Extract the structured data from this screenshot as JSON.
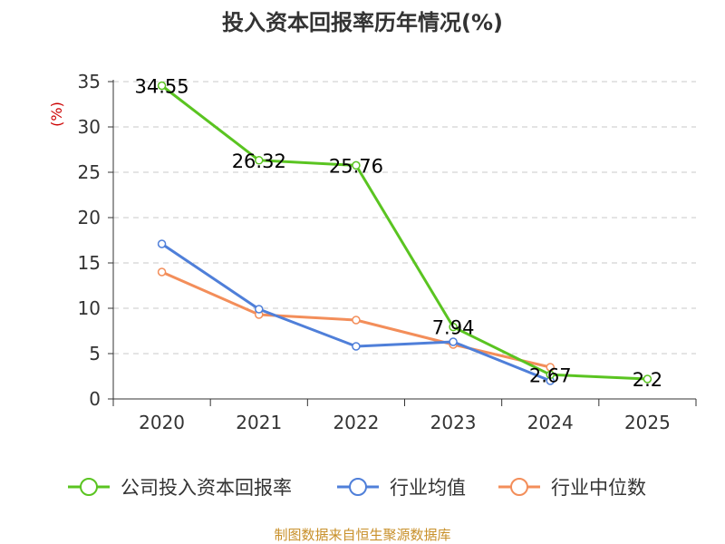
{
  "chart_data": {
    "type": "line",
    "title": "投入资本回报率历年情况(%)",
    "ylabel": "(%)",
    "xlabel": "",
    "categories": [
      "2020",
      "2021",
      "2022",
      "2023",
      "2024",
      "2025"
    ],
    "ylim": [
      0,
      35
    ],
    "yticks": [
      0,
      5,
      10,
      15,
      20,
      25,
      30,
      35
    ],
    "grid": true,
    "legend_position": "bottom",
    "series": [
      {
        "name": "公司投入资本回报率",
        "color": "#5ac421",
        "values": [
          34.55,
          26.32,
          25.76,
          7.94,
          2.67,
          2.2
        ],
        "labels": [
          "34.55",
          "26.32",
          "25.76",
          "7.94",
          "2.67",
          "2.2"
        ]
      },
      {
        "name": "行业均值",
        "color": "#4f7fd9",
        "values": [
          17.1,
          9.9,
          5.8,
          6.3,
          2.0,
          null
        ]
      },
      {
        "name": "行业中位数",
        "color": "#f38e5a",
        "values": [
          14.0,
          9.3,
          8.7,
          6.0,
          3.5,
          null
        ]
      }
    ]
  },
  "footer": {
    "source": "制图数据来自恒生聚源数据库"
  }
}
